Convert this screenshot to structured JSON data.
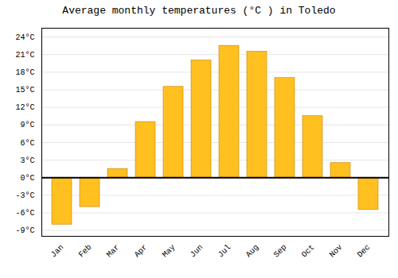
{
  "chart_data": {
    "type": "bar",
    "title": "Average monthly temperatures (°C ) in Toledo",
    "categories": [
      "Jan",
      "Feb",
      "Mar",
      "Apr",
      "May",
      "Jun",
      "Jul",
      "Aug",
      "Sep",
      "Oct",
      "Nov",
      "Dec"
    ],
    "values": [
      -8.0,
      -5.0,
      1.5,
      9.5,
      15.5,
      20.0,
      22.5,
      21.5,
      17.0,
      10.5,
      2.5,
      -5.5
    ],
    "color": "#FFC020",
    "ylim": [
      -10.0,
      25.5
    ],
    "yticks": [
      {
        "value": -9,
        "label": "-9°C"
      },
      {
        "value": -6,
        "label": "-6°C"
      },
      {
        "value": -3,
        "label": "-3°C"
      },
      {
        "value": 0,
        "label": "0°C"
      },
      {
        "value": 3,
        "label": "3°C"
      },
      {
        "value": 6,
        "label": "6°C"
      },
      {
        "value": 9,
        "label": "9°C"
      },
      {
        "value": 12,
        "label": "12°C"
      },
      {
        "value": 15,
        "label": "15°C"
      },
      {
        "value": 18,
        "label": "18°C"
      },
      {
        "value": 21,
        "label": "21°C"
      },
      {
        "value": 24,
        "label": "24°C"
      }
    ],
    "grid": true
  }
}
